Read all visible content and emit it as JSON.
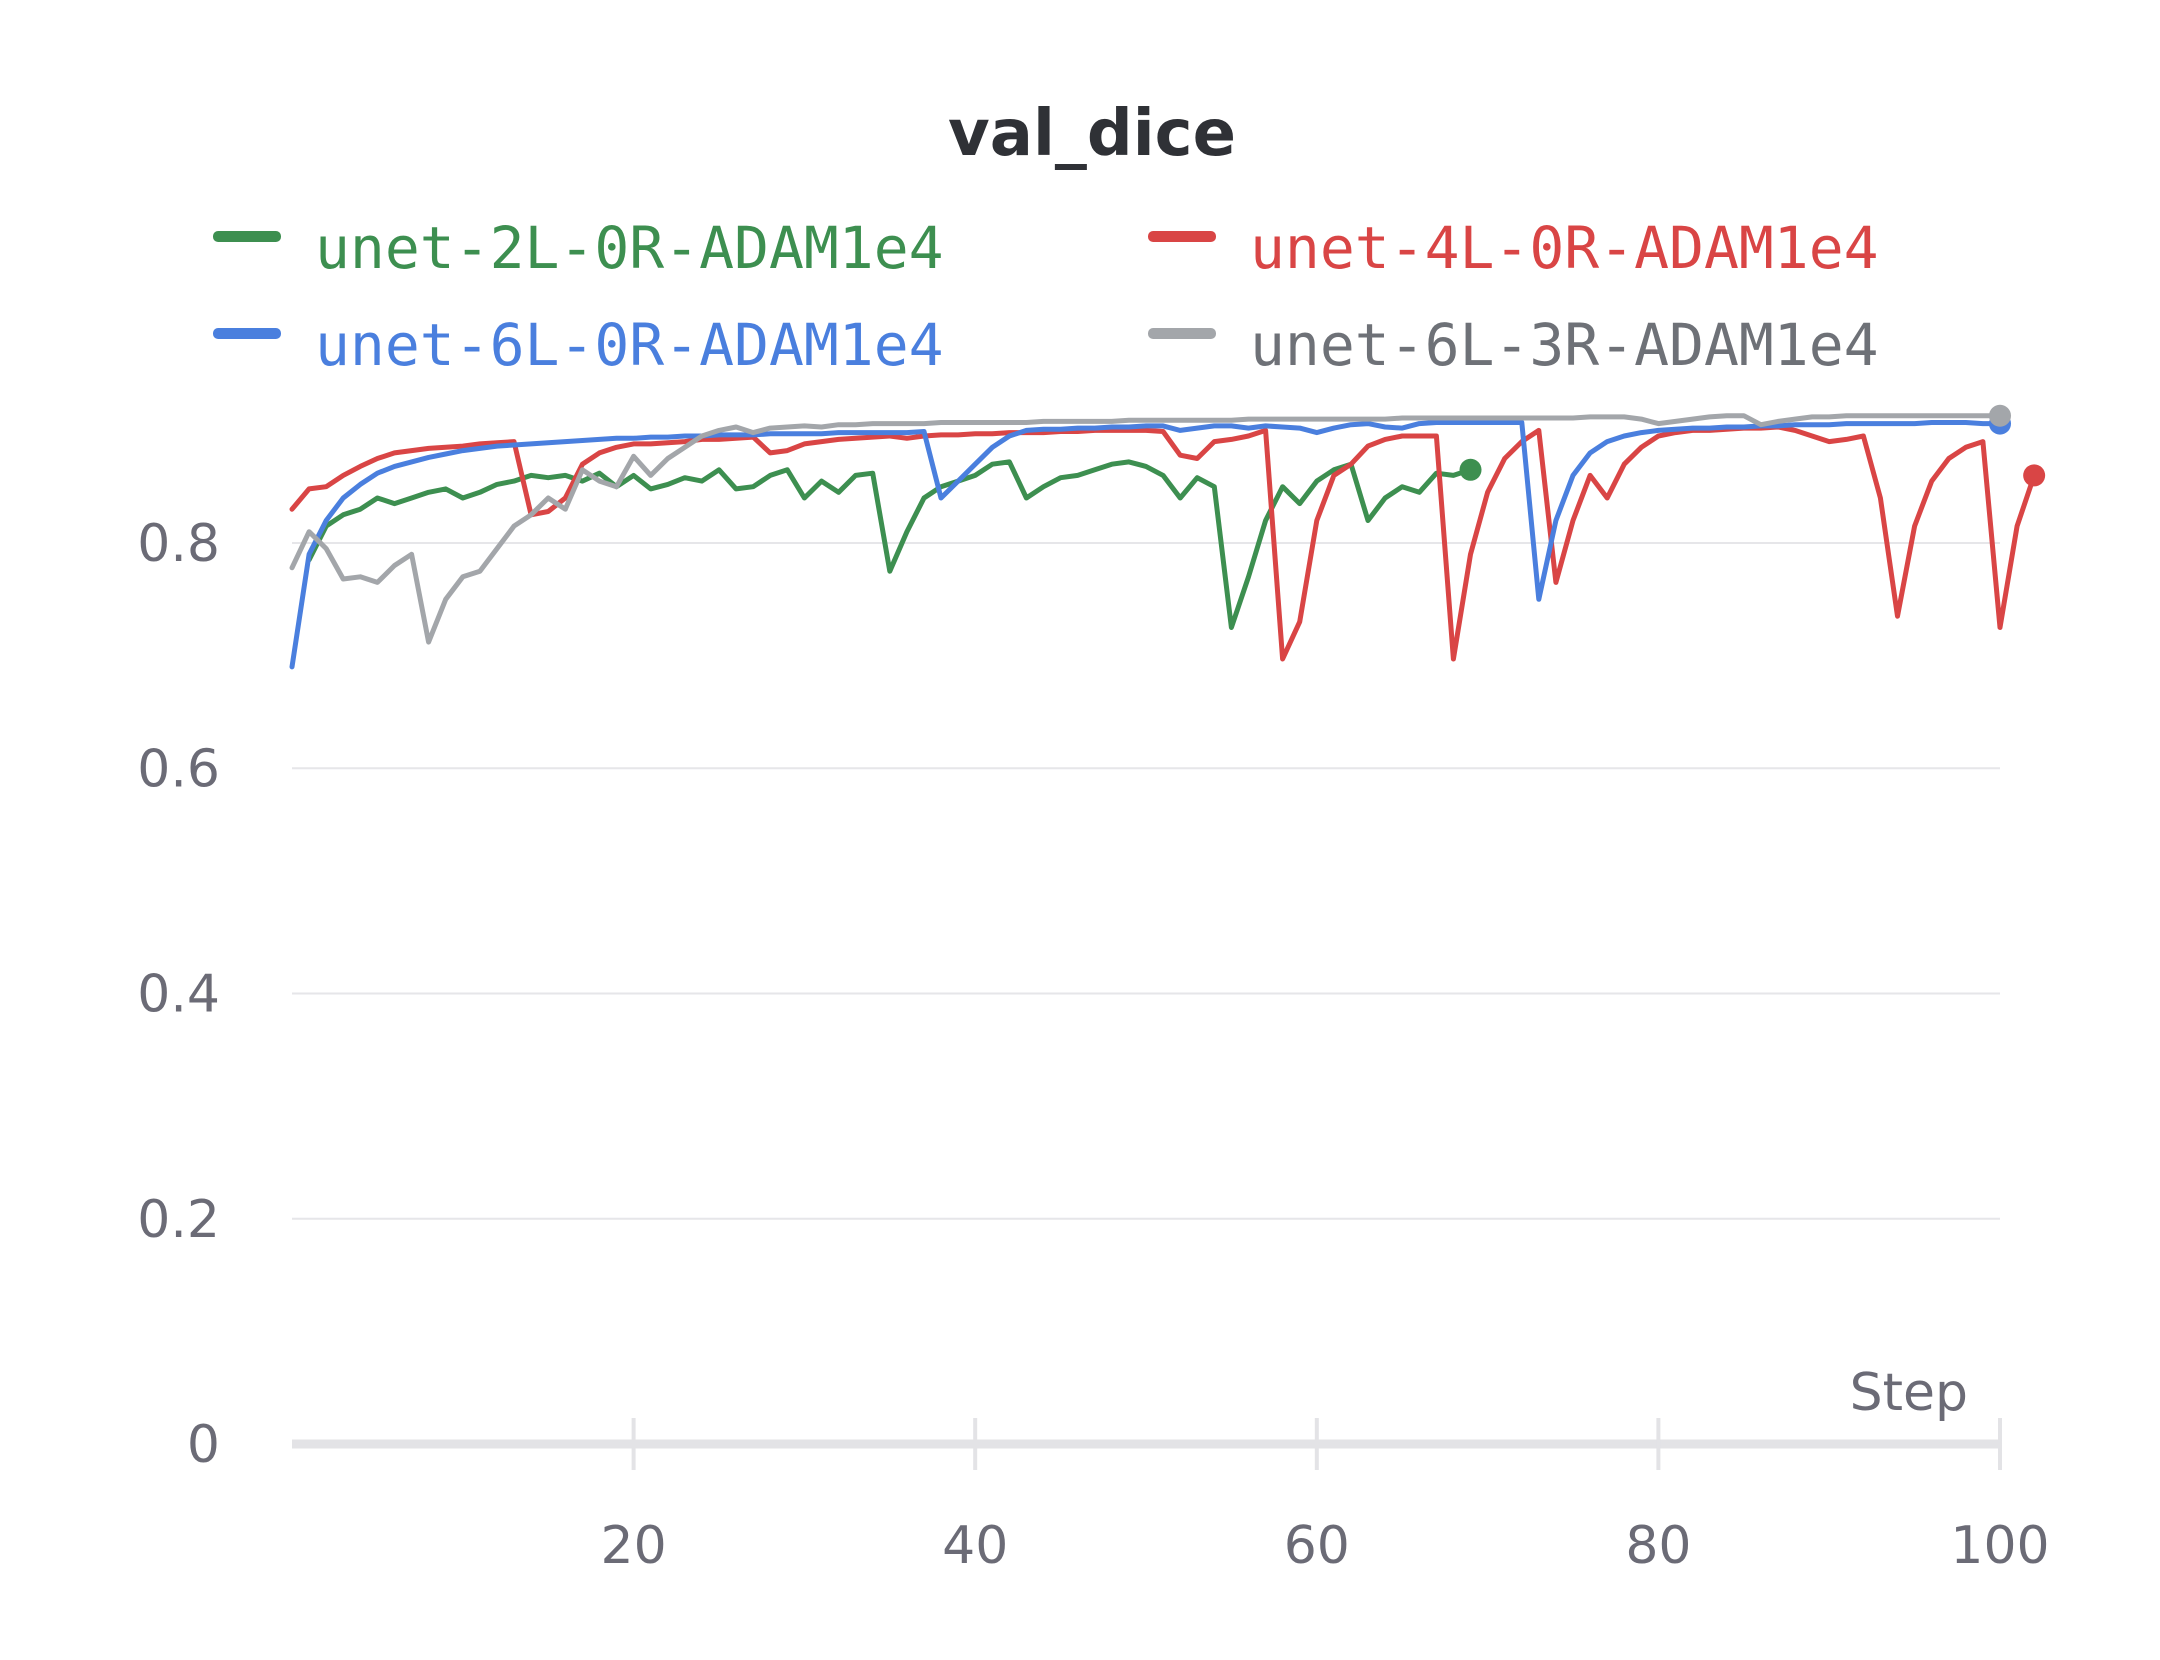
{
  "chart_data": {
    "type": "line",
    "title": "val_dice",
    "xlabel": "Step",
    "ylabel": "",
    "xlim": [
      0,
      100
    ],
    "ylim": [
      0,
      0.9
    ],
    "x_ticks": [
      20,
      40,
      60,
      80,
      100
    ],
    "y_ticks": [
      0,
      0.2,
      0.4,
      0.6,
      0.8
    ],
    "x_tick_labels": [
      "20",
      "40",
      "60",
      "80",
      "100"
    ],
    "y_tick_labels": [
      "0",
      "0.2",
      "0.4",
      "0.6",
      "0.8"
    ],
    "grid": true,
    "legend_position": "top",
    "series": [
      {
        "name": "unet-2L-0R-ADAM1e4",
        "color": "#3d8f50",
        "x_start": 1,
        "values": [
          0.785,
          0.815,
          0.825,
          0.83,
          0.84,
          0.835,
          0.84,
          0.845,
          0.848,
          0.84,
          0.845,
          0.852,
          0.855,
          0.86,
          0.858,
          0.86,
          0.855,
          0.862,
          0.85,
          0.86,
          0.848,
          0.852,
          0.858,
          0.855,
          0.865,
          0.848,
          0.85,
          0.86,
          0.865,
          0.84,
          0.855,
          0.845,
          0.86,
          0.862,
          0.775,
          0.81,
          0.84,
          0.85,
          0.855,
          0.86,
          0.87,
          0.872,
          0.84,
          0.85,
          0.858,
          0.86,
          0.865,
          0.87,
          0.872,
          0.868,
          0.86,
          0.84,
          0.858,
          0.85,
          0.725,
          0.77,
          0.82,
          0.85,
          0.835,
          0.855,
          0.865,
          0.87,
          0.82,
          0.84,
          0.85,
          0.845,
          0.862,
          0.86,
          0.865
        ]
      },
      {
        "name": "unet-4L-0R-ADAM1e4",
        "color": "#d94545",
        "x_start": 0,
        "values": [
          0.83,
          0.848,
          0.85,
          0.86,
          0.868,
          0.875,
          0.88,
          0.882,
          0.884,
          0.885,
          0.886,
          0.888,
          0.889,
          0.89,
          0.825,
          0.828,
          0.84,
          0.87,
          0.88,
          0.885,
          0.888,
          0.888,
          0.889,
          0.89,
          0.892,
          0.892,
          0.893,
          0.894,
          0.88,
          0.882,
          0.888,
          0.89,
          0.892,
          0.893,
          0.894,
          0.895,
          0.893,
          0.895,
          0.896,
          0.896,
          0.897,
          0.897,
          0.898,
          0.898,
          0.898,
          0.899,
          0.899,
          0.9,
          0.9,
          0.9,
          0.9,
          0.899,
          0.878,
          0.875,
          0.89,
          0.892,
          0.895,
          0.9,
          0.697,
          0.73,
          0.82,
          0.86,
          0.87,
          0.886,
          0.892,
          0.895,
          0.895,
          0.895,
          0.697,
          0.79,
          0.845,
          0.875,
          0.89,
          0.9,
          0.765,
          0.82,
          0.86,
          0.84,
          0.87,
          0.885,
          0.895,
          0.898,
          0.9,
          0.9,
          0.901,
          0.902,
          0.902,
          0.903,
          0.9,
          0.895,
          0.89,
          0.892,
          0.895,
          0.84,
          0.735,
          0.815,
          0.855,
          0.875,
          0.885,
          0.89,
          0.725,
          0.815,
          0.86
        ]
      },
      {
        "name": "unet-6L-0R-ADAM1e4",
        "color": "#4a7fde",
        "x_start": 0,
        "values": [
          0.69,
          0.79,
          0.82,
          0.84,
          0.852,
          0.862,
          0.868,
          0.872,
          0.876,
          0.879,
          0.882,
          0.884,
          0.886,
          0.887,
          0.888,
          0.889,
          0.89,
          0.891,
          0.892,
          0.893,
          0.893,
          0.894,
          0.894,
          0.895,
          0.895,
          0.896,
          0.896,
          0.896,
          0.897,
          0.897,
          0.897,
          0.897,
          0.898,
          0.898,
          0.898,
          0.898,
          0.898,
          0.899,
          0.84,
          0.855,
          0.87,
          0.885,
          0.895,
          0.9,
          0.901,
          0.901,
          0.902,
          0.902,
          0.903,
          0.903,
          0.904,
          0.904,
          0.9,
          0.902,
          0.904,
          0.904,
          0.902,
          0.904,
          0.903,
          0.902,
          0.898,
          0.902,
          0.905,
          0.906,
          0.903,
          0.902,
          0.906,
          0.907,
          0.907,
          0.907,
          0.907,
          0.907,
          0.907,
          0.75,
          0.82,
          0.86,
          0.88,
          0.89,
          0.895,
          0.898,
          0.9,
          0.901,
          0.902,
          0.902,
          0.903,
          0.903,
          0.904,
          0.904,
          0.905,
          0.905,
          0.905,
          0.906,
          0.906,
          0.906,
          0.906,
          0.906,
          0.907,
          0.907,
          0.907,
          0.906,
          0.906
        ]
      },
      {
        "name": "unet-6L-3R-ADAM1e4",
        "color": "#a3a6aa",
        "x_start": 0,
        "values": [
          0.778,
          0.81,
          0.795,
          0.768,
          0.77,
          0.765,
          0.78,
          0.79,
          0.712,
          0.75,
          0.77,
          0.775,
          0.795,
          0.815,
          0.825,
          0.84,
          0.83,
          0.865,
          0.855,
          0.85,
          0.877,
          0.86,
          0.875,
          0.885,
          0.895,
          0.9,
          0.903,
          0.898,
          0.902,
          0.903,
          0.904,
          0.903,
          0.905,
          0.905,
          0.906,
          0.906,
          0.906,
          0.906,
          0.907,
          0.907,
          0.907,
          0.907,
          0.907,
          0.907,
          0.908,
          0.908,
          0.908,
          0.908,
          0.908,
          0.909,
          0.909,
          0.909,
          0.909,
          0.909,
          0.909,
          0.909,
          0.91,
          0.91,
          0.91,
          0.91,
          0.91,
          0.91,
          0.91,
          0.91,
          0.91,
          0.911,
          0.911,
          0.911,
          0.911,
          0.911,
          0.911,
          0.911,
          0.911,
          0.911,
          0.911,
          0.911,
          0.912,
          0.912,
          0.912,
          0.91,
          0.906,
          0.908,
          0.91,
          0.912,
          0.913,
          0.913,
          0.905,
          0.908,
          0.91,
          0.912,
          0.912,
          0.913,
          0.913,
          0.913,
          0.913,
          0.913,
          0.913,
          0.913,
          0.913,
          0.913,
          0.913
        ]
      }
    ]
  }
}
